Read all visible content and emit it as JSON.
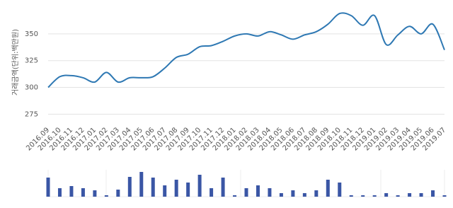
{
  "chart_data": [
    {
      "type": "line",
      "y_label": "거래금액(단위:백만원)",
      "color": "#2e78b3",
      "grid": true,
      "categories": [
        "2016.09",
        "2016.10",
        "2016.11",
        "2016.12",
        "2017.01",
        "2017.02",
        "2017.03",
        "2017.04",
        "2017.05",
        "2017.06",
        "2017.07",
        "2017.08",
        "2017.09",
        "2017.10",
        "2017.11",
        "2017.12",
        "2018.01",
        "2018.02",
        "2018.03",
        "2018.04",
        "2018.05",
        "2018.06",
        "2018.07",
        "2018.08",
        "2018.09",
        "2018.10",
        "2018.11",
        "2018.12",
        "2019.01",
        "2019.02",
        "2019.03",
        "2019.04",
        "2019.05",
        "2019.06",
        "2019.07"
      ],
      "values": [
        300,
        310,
        311,
        309,
        305,
        314,
        305,
        309,
        309,
        310,
        318,
        328,
        331,
        338,
        339,
        343,
        348,
        350,
        348,
        352,
        349,
        345,
        349,
        352,
        359,
        369,
        367,
        358,
        367,
        340,
        349,
        357,
        350,
        359,
        335
      ],
      "ylim": [
        266,
        375
      ],
      "yticks": [
        275,
        300,
        325,
        350
      ]
    },
    {
      "type": "bar",
      "color": "#3a56a5",
      "values": [
        27,
        12,
        15,
        12,
        9,
        2,
        10,
        28,
        35,
        27,
        16,
        24,
        20,
        31,
        12,
        27,
        2,
        12,
        16,
        12,
        5,
        9,
        5,
        9,
        24,
        20,
        2,
        2,
        2,
        5,
        2,
        5,
        5,
        9,
        2
      ],
      "ylim": [
        0,
        38
      ]
    }
  ]
}
